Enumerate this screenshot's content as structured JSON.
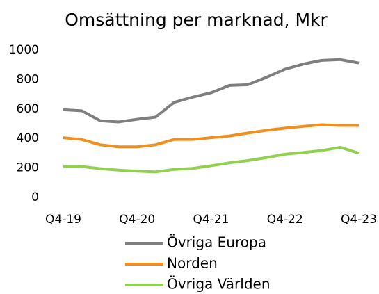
{
  "chart_data": {
    "type": "line",
    "title": "Omsättning per marknad, Mkr",
    "categories": [
      "Q4-19",
      null,
      null,
      null,
      "Q4-20",
      null,
      null,
      null,
      "Q4-21",
      null,
      null,
      null,
      "Q4-22",
      null,
      null,
      null,
      "Q4-23"
    ],
    "series": [
      {
        "name": "Övriga Europa",
        "color": "#7f7f7f",
        "values": [
          595,
          588,
          520,
          512,
          530,
          545,
          645,
          680,
          710,
          760,
          765,
          815,
          870,
          905,
          930,
          935,
          912
        ]
      },
      {
        "name": "Norden",
        "color": "#f28e1e",
        "values": [
          405,
          393,
          357,
          343,
          343,
          357,
          393,
          393,
          405,
          417,
          437,
          455,
          470,
          482,
          493,
          488,
          488
        ]
      },
      {
        "name": "Övriga Världen",
        "color": "#92d050",
        "values": [
          210,
          210,
          195,
          185,
          178,
          173,
          190,
          197,
          215,
          235,
          250,
          270,
          293,
          305,
          318,
          340,
          300
        ]
      }
    ],
    "ylim": [
      0,
      1000
    ],
    "yticks": [
      0,
      200,
      400,
      600,
      800,
      1000
    ],
    "grid": false,
    "legend": "bottom"
  }
}
